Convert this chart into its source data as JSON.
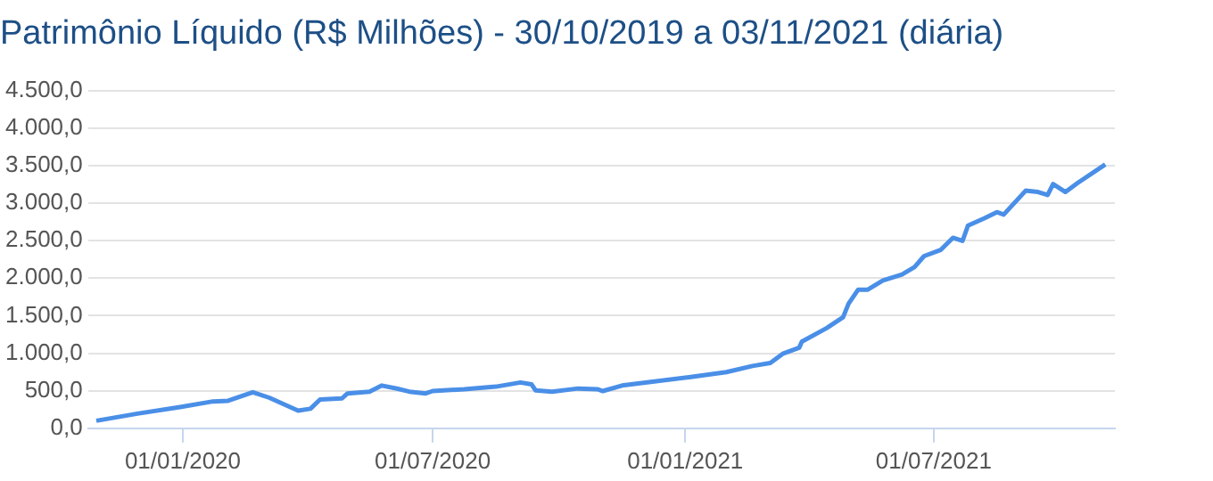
{
  "chart_data": {
    "type": "line",
    "title": "Patrimônio Líquido (R$ Milhões) - 30/10/2019 a 03/11/2021 (diária)",
    "x": [
      "2019-10-30",
      "2019-11-29",
      "2019-12-31",
      "2020-01-23",
      "2020-02-03",
      "2020-02-21",
      "2020-03-04",
      "2020-03-25",
      "2020-04-03",
      "2020-04-10",
      "2020-04-26",
      "2020-04-30",
      "2020-05-16",
      "2020-05-25",
      "2020-06-05",
      "2020-06-14",
      "2020-06-26",
      "2020-07-01",
      "2020-07-24",
      "2020-08-16",
      "2020-09-03",
      "2020-09-11",
      "2020-09-14",
      "2020-09-26",
      "2020-10-15",
      "2020-10-29",
      "2020-11-02",
      "2020-11-16",
      "2021-01-05",
      "2021-01-31",
      "2021-02-19",
      "2021-03-04",
      "2021-03-13",
      "2021-03-25",
      "2021-03-27",
      "2021-04-14",
      "2021-04-26",
      "2021-04-30",
      "2021-05-07",
      "2021-05-14",
      "2021-05-25",
      "2021-06-08",
      "2021-06-17",
      "2021-06-24",
      "2021-07-06",
      "2021-07-15",
      "2021-07-22",
      "2021-07-26",
      "2021-08-07",
      "2021-08-16",
      "2021-08-21",
      "2021-09-06",
      "2021-09-15",
      "2021-09-22",
      "2021-09-26",
      "2021-10-05",
      "2021-10-14",
      "2021-11-03"
    ],
    "series": [
      {
        "color": "#4a8fe7",
        "values": [
          100,
          195,
          285,
          358,
          366,
          480,
          407,
          236,
          260,
          383,
          398,
          464,
          488,
          569,
          529,
          488,
          464,
          496,
          520,
          554,
          610,
          586,
          505,
          488,
          530,
          520,
          496,
          569,
          683,
          748,
          830,
          870,
          992,
          1073,
          1155,
          1334,
          1480,
          1660,
          1847,
          1847,
          1968,
          2050,
          2147,
          2294,
          2375,
          2538,
          2496,
          2701,
          2799,
          2879,
          2847,
          3165,
          3148,
          3107,
          3253,
          3148,
          3270,
          3514
        ]
      }
    ],
    "xlim": [
      "2019-10-24",
      "2021-11-10"
    ],
    "xticks": [
      {
        "value": "2020-01-01",
        "label": "01/01/2020"
      },
      {
        "value": "2020-07-01",
        "label": "01/07/2020"
      },
      {
        "value": "2021-01-01",
        "label": "01/01/2021"
      },
      {
        "value": "2021-07-01",
        "label": "01/07/2021"
      }
    ],
    "ylim": [
      0,
      4500
    ],
    "yticks": [
      {
        "value": 0,
        "label": "0,0"
      },
      {
        "value": 500,
        "label": "500,0"
      },
      {
        "value": 1000,
        "label": "1.000,0"
      },
      {
        "value": 1500,
        "label": "1.500,0"
      },
      {
        "value": 2000,
        "label": "2.000,0"
      },
      {
        "value": 2500,
        "label": "2.500,0"
      },
      {
        "value": 3000,
        "label": "3.000,0"
      },
      {
        "value": 3500,
        "label": "3.500,0"
      },
      {
        "value": 4000,
        "label": "4.000,0"
      },
      {
        "value": 4500,
        "label": "4.500,0"
      }
    ],
    "grid": "y",
    "legend": false,
    "marker": "none",
    "line_style": "solid"
  }
}
